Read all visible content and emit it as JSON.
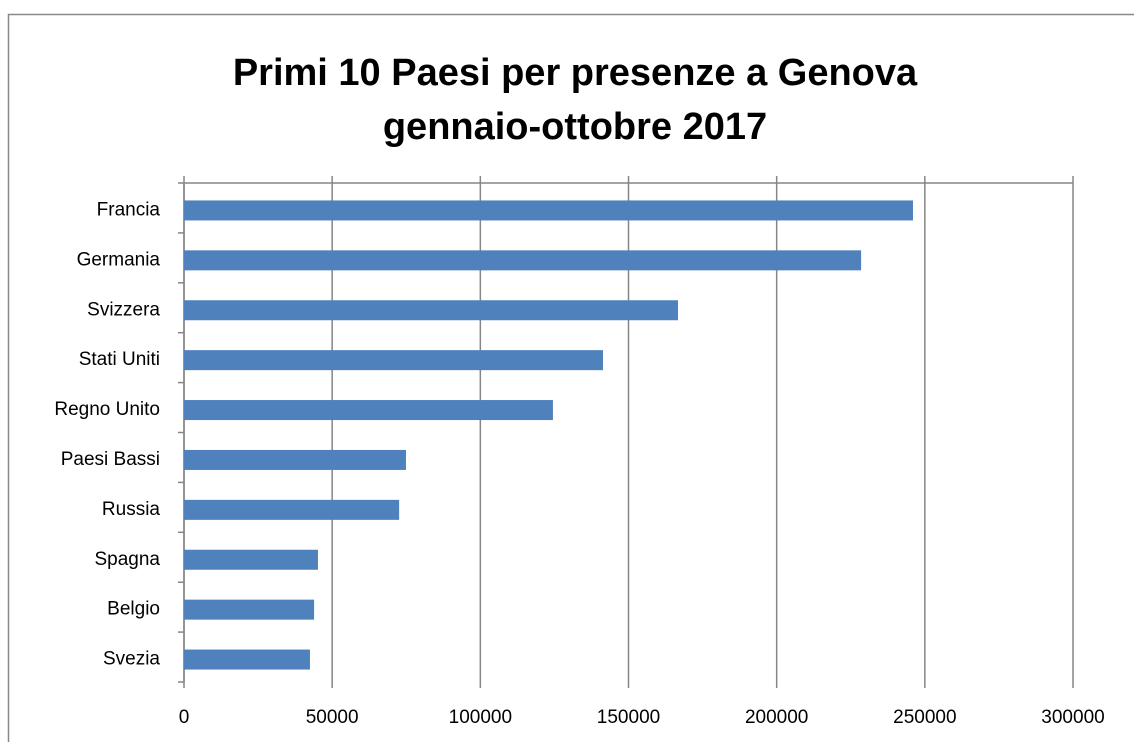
{
  "chart_data": {
    "type": "bar",
    "orientation": "horizontal",
    "title": [
      "Primi 10 Paesi per presenze a Genova",
      "gennaio-ottobre 2017"
    ],
    "categories": [
      "Francia",
      "Germania",
      "Svizzera",
      "Stati Uniti",
      "Regno Unito",
      "Paesi Bassi",
      "Russia",
      "Spagna",
      "Belgio",
      "Svezia"
    ],
    "values": [
      246000,
      228500,
      166700,
      141400,
      124500,
      74900,
      72600,
      45200,
      43900,
      42500
    ],
    "color": "#4f81bd",
    "xlim": [
      0,
      300000
    ],
    "xticks": [
      0,
      50000,
      100000,
      150000,
      200000,
      250000,
      300000
    ],
    "grid": true
  }
}
